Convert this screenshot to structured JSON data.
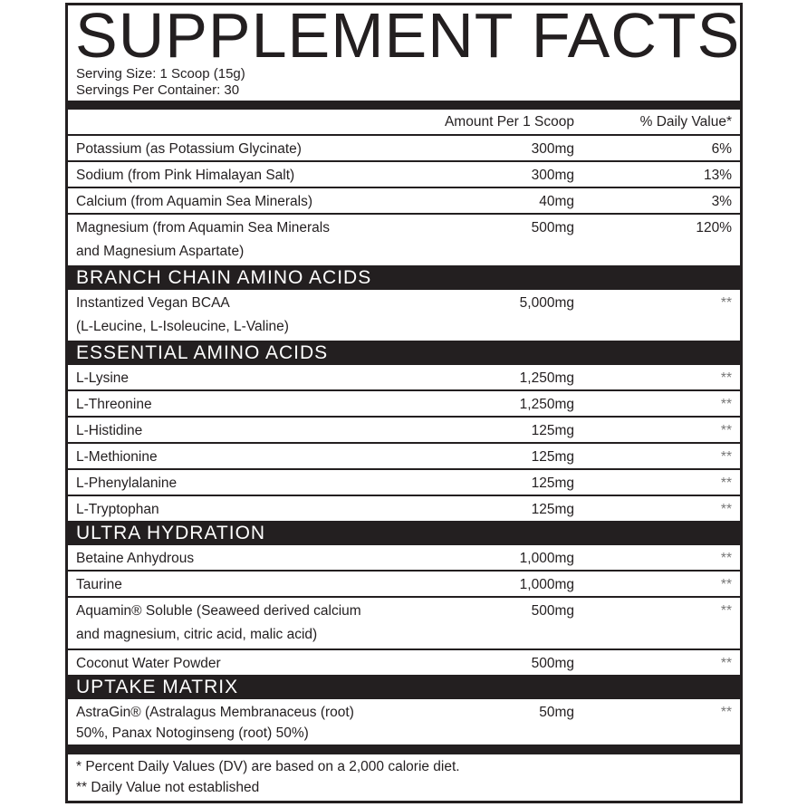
{
  "title": "SUPPLEMENT FACTS",
  "serving_size": "Serving Size: 1 Scoop (15g)",
  "servings_per_container": "Servings Per Container: 30",
  "header": {
    "amount": "Amount Per 1 Scoop",
    "daily_value": "% Daily Value*"
  },
  "sections": [
    {
      "title": "",
      "rows": [
        {
          "name": "Potassium (as Potassium Glycinate)",
          "amount": "300mg",
          "dv": "6%"
        },
        {
          "name": "Sodium (from Pink Himalayan Salt)",
          "amount": "300mg",
          "dv": "13%"
        },
        {
          "name": "Calcium (from Aquamin Sea Minerals)",
          "amount": "40mg",
          "dv": "3%"
        },
        {
          "name": "Magnesium (from Aquamin Sea Minerals",
          "name2": "and Magnesium Aspartate)",
          "amount": "500mg",
          "dv": "120%"
        }
      ]
    },
    {
      "title": "BRANCH CHAIN AMINO ACIDS",
      "rows": [
        {
          "name": "Instantized Vegan BCAA",
          "name2": "(L-Leucine, L-Isoleucine, L-Valine)",
          "amount": "5,000mg",
          "dv": "**"
        }
      ]
    },
    {
      "title": "ESSENTIAL AMINO ACIDS",
      "rows": [
        {
          "name": "L-Lysine",
          "amount": "1,250mg",
          "dv": "**"
        },
        {
          "name": "L-Threonine",
          "amount": "1,250mg",
          "dv": "**"
        },
        {
          "name": "L-Histidine",
          "amount": "125mg",
          "dv": "**"
        },
        {
          "name": "L-Methionine",
          "amount": "125mg",
          "dv": "**"
        },
        {
          "name": "L-Phenylalanine",
          "amount": "125mg",
          "dv": "**"
        },
        {
          "name": "L-Tryptophan",
          "amount": "125mg",
          "dv": "**"
        }
      ]
    },
    {
      "title": "ULTRA HYDRATION",
      "rows": [
        {
          "name": "Betaine Anhydrous",
          "amount": "1,000mg",
          "dv": "**"
        },
        {
          "name": "Taurine",
          "amount": "1,000mg",
          "dv": "**"
        },
        {
          "name": "Aquamin® Soluble (Seaweed derived calcium",
          "name2": "and magnesium, citric acid, malic acid)",
          "amount": "500mg",
          "dv": "**"
        },
        {
          "name": "Coconut Water Powder",
          "amount": "500mg",
          "dv": "**"
        }
      ]
    },
    {
      "title": "UPTAKE MATRIX",
      "rows": [
        {
          "name": "AstraGin® (Astralagus Membranaceus (root)",
          "name2": "50%, Panax Notoginseng (root) 50%)",
          "amount": "50mg",
          "dv": "**",
          "tight": true
        }
      ]
    }
  ],
  "footnotes": [
    "* Percent Daily Values (DV) are based on a 2,000 calorie diet.",
    "** Daily Value not established"
  ]
}
